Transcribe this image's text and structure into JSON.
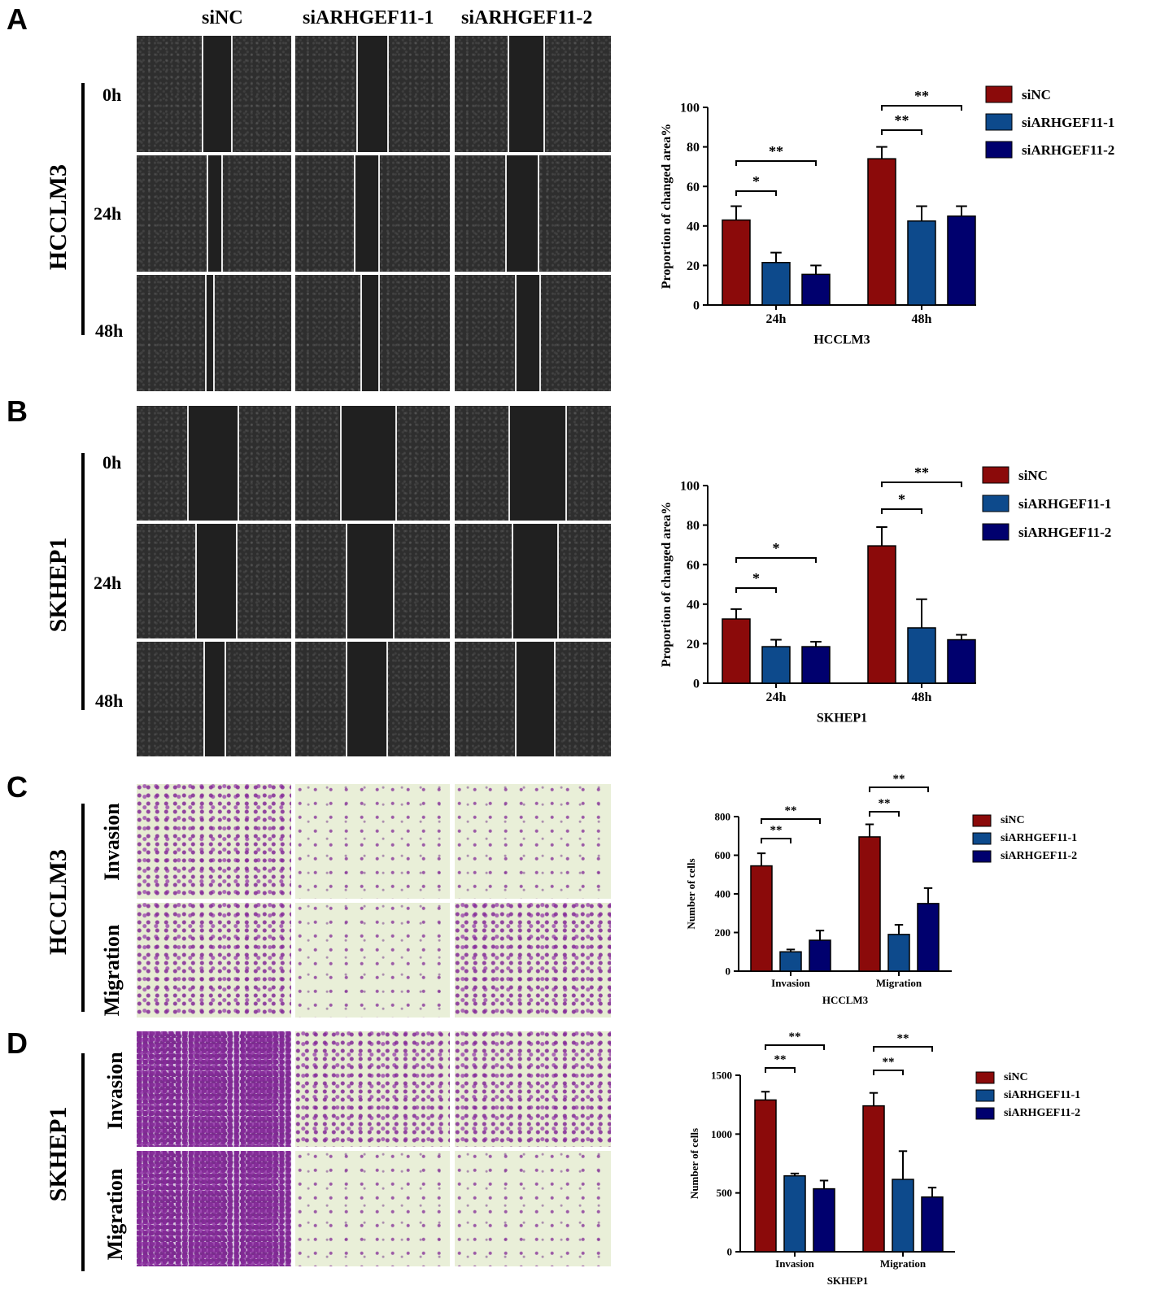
{
  "panels": {
    "A": "A",
    "B": "B",
    "C": "C",
    "D": "D"
  },
  "columns": [
    "siNC",
    "siARHGEF11-1",
    "siARHGEF11-2"
  ],
  "scratch_panels": [
    {
      "cell_line": "HCCLM3",
      "times": [
        "0h",
        "24h",
        "48h"
      ]
    },
    {
      "cell_line": "SKHEP1",
      "times": [
        "0h",
        "24h",
        "48h"
      ]
    }
  ],
  "transwell_panels": [
    {
      "cell_line": "HCCLM3",
      "rows": [
        "Invasion",
        "Migration"
      ]
    },
    {
      "cell_line": "SKHEP1",
      "rows": [
        "Invasion",
        "Migration"
      ]
    }
  ],
  "colors": {
    "siNC": "#8b0a0a",
    "siARHGEF11-1": "#0d4a8c",
    "siARHGEF11-2": "#00006e"
  },
  "chart_data": [
    {
      "type": "bar",
      "categories": [
        "24h",
        "48h"
      ],
      "series": [
        {
          "name": "siNC",
          "values": [
            43,
            74
          ],
          "errors": [
            7,
            6
          ]
        },
        {
          "name": "siARHGEF11-1",
          "values": [
            21.5,
            42.5
          ],
          "errors": [
            5,
            7.5
          ]
        },
        {
          "name": "siARHGEF11-2",
          "values": [
            15.5,
            45
          ],
          "errors": [
            4.5,
            5
          ]
        }
      ],
      "title": "",
      "xlabel": "HCCLM3",
      "ylabel": "Proportion of changed area%",
      "ylim": [
        0,
        100
      ],
      "yticks": [
        0,
        20,
        40,
        60,
        80,
        100
      ],
      "significance": [
        {
          "category": 0,
          "from": 0,
          "to": 1,
          "label": "*"
        },
        {
          "category": 0,
          "from": 0,
          "to": 2,
          "label": "**"
        },
        {
          "category": 1,
          "from": 0,
          "to": 1,
          "label": "**"
        },
        {
          "category": 1,
          "from": 0,
          "to": 2,
          "label": "**"
        }
      ],
      "legend": "top-right"
    },
    {
      "type": "bar",
      "categories": [
        "24h",
        "48h"
      ],
      "series": [
        {
          "name": "siNC",
          "values": [
            32.5,
            69.5
          ],
          "errors": [
            5,
            9.5
          ]
        },
        {
          "name": "siARHGEF11-1",
          "values": [
            18.5,
            28
          ],
          "errors": [
            3.5,
            14.5
          ]
        },
        {
          "name": "siARHGEF11-2",
          "values": [
            18.5,
            22
          ],
          "errors": [
            2.5,
            2.5
          ]
        }
      ],
      "title": "",
      "xlabel": "SKHEP1",
      "ylabel": "Proportion of changed area%",
      "ylim": [
        0,
        100
      ],
      "yticks": [
        0,
        20,
        40,
        60,
        80,
        100
      ],
      "significance": [
        {
          "category": 0,
          "from": 0,
          "to": 1,
          "label": "*"
        },
        {
          "category": 0,
          "from": 0,
          "to": 2,
          "label": "*"
        },
        {
          "category": 1,
          "from": 0,
          "to": 1,
          "label": "*"
        },
        {
          "category": 1,
          "from": 0,
          "to": 2,
          "label": "**"
        }
      ],
      "legend": "top-right"
    },
    {
      "type": "bar",
      "categories": [
        "Invasion",
        "Migration"
      ],
      "series": [
        {
          "name": "siNC",
          "values": [
            545,
            695
          ],
          "errors": [
            65,
            65
          ]
        },
        {
          "name": "siARHGEF11-1",
          "values": [
            100,
            190
          ],
          "errors": [
            12,
            50
          ]
        },
        {
          "name": "siARHGEF11-2",
          "values": [
            160,
            350
          ],
          "errors": [
            50,
            80
          ]
        }
      ],
      "title": "",
      "xlabel": "HCCLM3",
      "ylabel": "Number of cells",
      "ylim": [
        0,
        800
      ],
      "yticks": [
        0,
        200,
        400,
        600,
        800
      ],
      "significance": [
        {
          "category": 0,
          "from": 0,
          "to": 1,
          "label": "**"
        },
        {
          "category": 0,
          "from": 0,
          "to": 2,
          "label": "**"
        },
        {
          "category": 1,
          "from": 0,
          "to": 1,
          "label": "**"
        },
        {
          "category": 1,
          "from": 0,
          "to": 2,
          "label": "**"
        }
      ],
      "legend": "top-right"
    },
    {
      "type": "bar",
      "categories": [
        "Invasion",
        "Migration"
      ],
      "series": [
        {
          "name": "siNC",
          "values": [
            1290,
            1240
          ],
          "errors": [
            70,
            110
          ]
        },
        {
          "name": "siARHGEF11-1",
          "values": [
            645,
            615
          ],
          "errors": [
            20,
            240
          ]
        },
        {
          "name": "siARHGEF11-2",
          "values": [
            535,
            465
          ],
          "errors": [
            70,
            80
          ]
        }
      ],
      "title": "",
      "xlabel": "SKHEP1",
      "ylabel": "Number of cells",
      "ylim": [
        0,
        1500
      ],
      "yticks": [
        0,
        500,
        1000,
        1500
      ],
      "significance": [
        {
          "category": 0,
          "from": 0,
          "to": 1,
          "label": "**"
        },
        {
          "category": 0,
          "from": 0,
          "to": 2,
          "label": "**"
        },
        {
          "category": 1,
          "from": 0,
          "to": 1,
          "label": "**"
        },
        {
          "category": 1,
          "from": 0,
          "to": 2,
          "label": "**"
        }
      ],
      "legend": "top-right"
    }
  ]
}
